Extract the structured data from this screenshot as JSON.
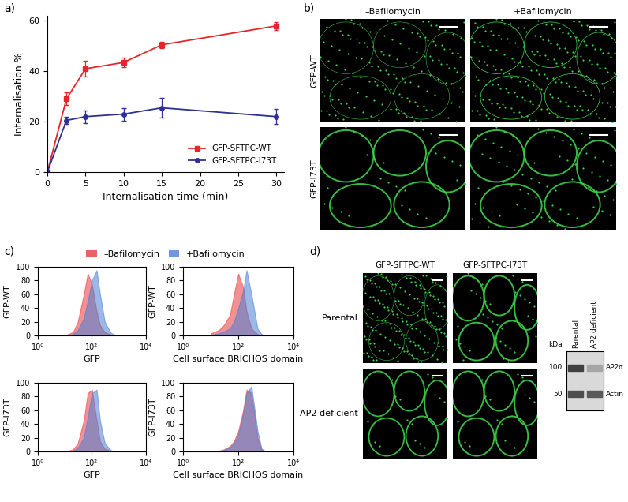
{
  "panel_labels": [
    "a)",
    "b)",
    "c)",
    "d)"
  ],
  "chart_data": [
    {
      "type": "line",
      "xlabel": "Internalisation time (min)",
      "ylabel": "Internalisation %",
      "x": [
        0,
        2.5,
        5,
        10,
        15,
        30
      ],
      "xlim": [
        0,
        31
      ],
      "xticks": [
        0,
        5,
        10,
        15,
        20,
        25,
        30
      ],
      "ylim": [
        0,
        62
      ],
      "yticks": [
        0,
        20,
        40,
        60
      ],
      "legend": "lower right",
      "series": [
        {
          "name": "GFP-SFTPC-WT",
          "color": "#e3262c",
          "marker": "square",
          "values": [
            0,
            29,
            41,
            43.5,
            50.5,
            58
          ],
          "error": [
            0,
            2.5,
            3,
            2,
            1.2,
            1.5
          ]
        },
        {
          "name": "GFP-SFTPC-I73T",
          "color": "#2e3192",
          "marker": "circle",
          "values": [
            0,
            20.5,
            22,
            23,
            25.5,
            22
          ],
          "error": [
            0,
            1.5,
            2.5,
            2.5,
            4,
            3
          ]
        }
      ]
    },
    {
      "type": "area",
      "xlabel": "GFP",
      "ylabel": "GFP-WT",
      "log": "x",
      "x": [
        10,
        20,
        30,
        50,
        70,
        100,
        150,
        200,
        300,
        500,
        700,
        1000
      ],
      "xlim": [
        1,
        10000
      ],
      "xticks": [
        {
          "value": 1,
          "label": "10⁰"
        },
        {
          "value": 100,
          "label": "10²"
        },
        {
          "value": 10000,
          "label": "10⁴"
        }
      ],
      "ylim": [
        0,
        100
      ],
      "yticks": [
        0,
        20,
        40,
        60,
        80,
        100
      ],
      "series": [
        {
          "name": "–Bafilomycin",
          "color": "#e8383d",
          "values": [
            0,
            5,
            20,
            60,
            90,
            75,
            35,
            15,
            5,
            1,
            0,
            0
          ]
        },
        {
          "name": "+Bafilomycin",
          "color": "#4a7fd4",
          "values": [
            0,
            2,
            8,
            25,
            50,
            80,
            95,
            60,
            20,
            4,
            1,
            0
          ]
        }
      ]
    },
    {
      "type": "area",
      "xlabel": "Cell surface BRICHOS domain",
      "ylabel": "GFP-WT",
      "log": "x",
      "x": [
        10,
        20,
        30,
        50,
        70,
        100,
        150,
        200,
        300,
        500,
        700,
        1000
      ],
      "xlim": [
        1,
        10000
      ],
      "xticks": [
        {
          "value": 1,
          "label": "10⁰"
        },
        {
          "value": 100,
          "label": "10²"
        },
        {
          "value": 10000,
          "label": "10⁴"
        }
      ],
      "ylim": [
        0,
        100
      ],
      "yticks": [
        0,
        20,
        40,
        60,
        80,
        100
      ],
      "series": [
        {
          "name": "–Bafilomycin",
          "color": "#e8383d",
          "values": [
            3,
            8,
            15,
            30,
            60,
            90,
            70,
            35,
            10,
            2,
            0,
            0
          ]
        },
        {
          "name": "+Bafilomycin",
          "color": "#4a7fd4",
          "values": [
            1,
            3,
            6,
            10,
            20,
            40,
            65,
            95,
            60,
            10,
            2,
            0
          ]
        }
      ]
    },
    {
      "type": "area",
      "xlabel": "GFP",
      "ylabel": "GFP-I73T",
      "log": "x",
      "x": [
        10,
        20,
        30,
        50,
        70,
        100,
        150,
        200,
        300,
        500,
        700,
        1000
      ],
      "xlim": [
        1,
        10000
      ],
      "xticks": [
        {
          "value": 1,
          "label": "10⁰"
        },
        {
          "value": 100,
          "label": "10²"
        },
        {
          "value": 10000,
          "label": "10⁴"
        }
      ],
      "ylim": [
        0,
        100
      ],
      "yticks": [
        0,
        20,
        40,
        60,
        80,
        100
      ],
      "series": [
        {
          "name": "–Bafilomycin",
          "color": "#e8383d",
          "values": [
            0,
            3,
            12,
            45,
            85,
            90,
            45,
            15,
            4,
            1,
            0,
            0
          ]
        },
        {
          "name": "+Bafilomycin",
          "color": "#4a7fd4",
          "values": [
            0,
            1,
            5,
            20,
            50,
            85,
            90,
            45,
            12,
            2,
            0,
            0
          ]
        }
      ]
    },
    {
      "type": "area",
      "xlabel": "Cell surface BRICHOS domain",
      "ylabel": "GFP-I73T",
      "log": "x",
      "x": [
        10,
        20,
        30,
        50,
        70,
        100,
        150,
        200,
        300,
        500,
        700,
        1000
      ],
      "xlim": [
        1,
        10000
      ],
      "xticks": [
        {
          "value": 1,
          "label": "10⁰"
        },
        {
          "value": 100,
          "label": "10²"
        },
        {
          "value": 10000,
          "label": "10⁴"
        }
      ],
      "ylim": [
        0,
        100
      ],
      "yticks": [
        0,
        20,
        40,
        60,
        80,
        100
      ],
      "series": [
        {
          "name": "–Bafilomycin",
          "color": "#e8383d",
          "values": [
            0,
            1,
            3,
            8,
            15,
            30,
            60,
            90,
            85,
            20,
            3,
            0
          ]
        },
        {
          "name": "+Bafilomycin",
          "color": "#4a7fd4",
          "values": [
            0,
            1,
            2,
            6,
            12,
            25,
            55,
            85,
            95,
            30,
            4,
            0
          ]
        }
      ]
    }
  ],
  "micrographs": [
    {
      "columns": [
        "–Bafilomycin",
        "+Bafilomycin"
      ],
      "rows": [
        "GFP-WT",
        "GFP-I73T"
      ]
    },
    {
      "columns": [
        "GFP-SFTPC-WT",
        "GFP-SFTPC-I73T"
      ],
      "rows": [
        "Parental",
        "AP2 deficient"
      ]
    }
  ],
  "blot": {
    "unit": "kDa",
    "markers": [
      100,
      50
    ],
    "lanes": [
      "Parental",
      "AP2 deficient"
    ],
    "bands": [
      "AP2α",
      "Actin"
    ]
  }
}
